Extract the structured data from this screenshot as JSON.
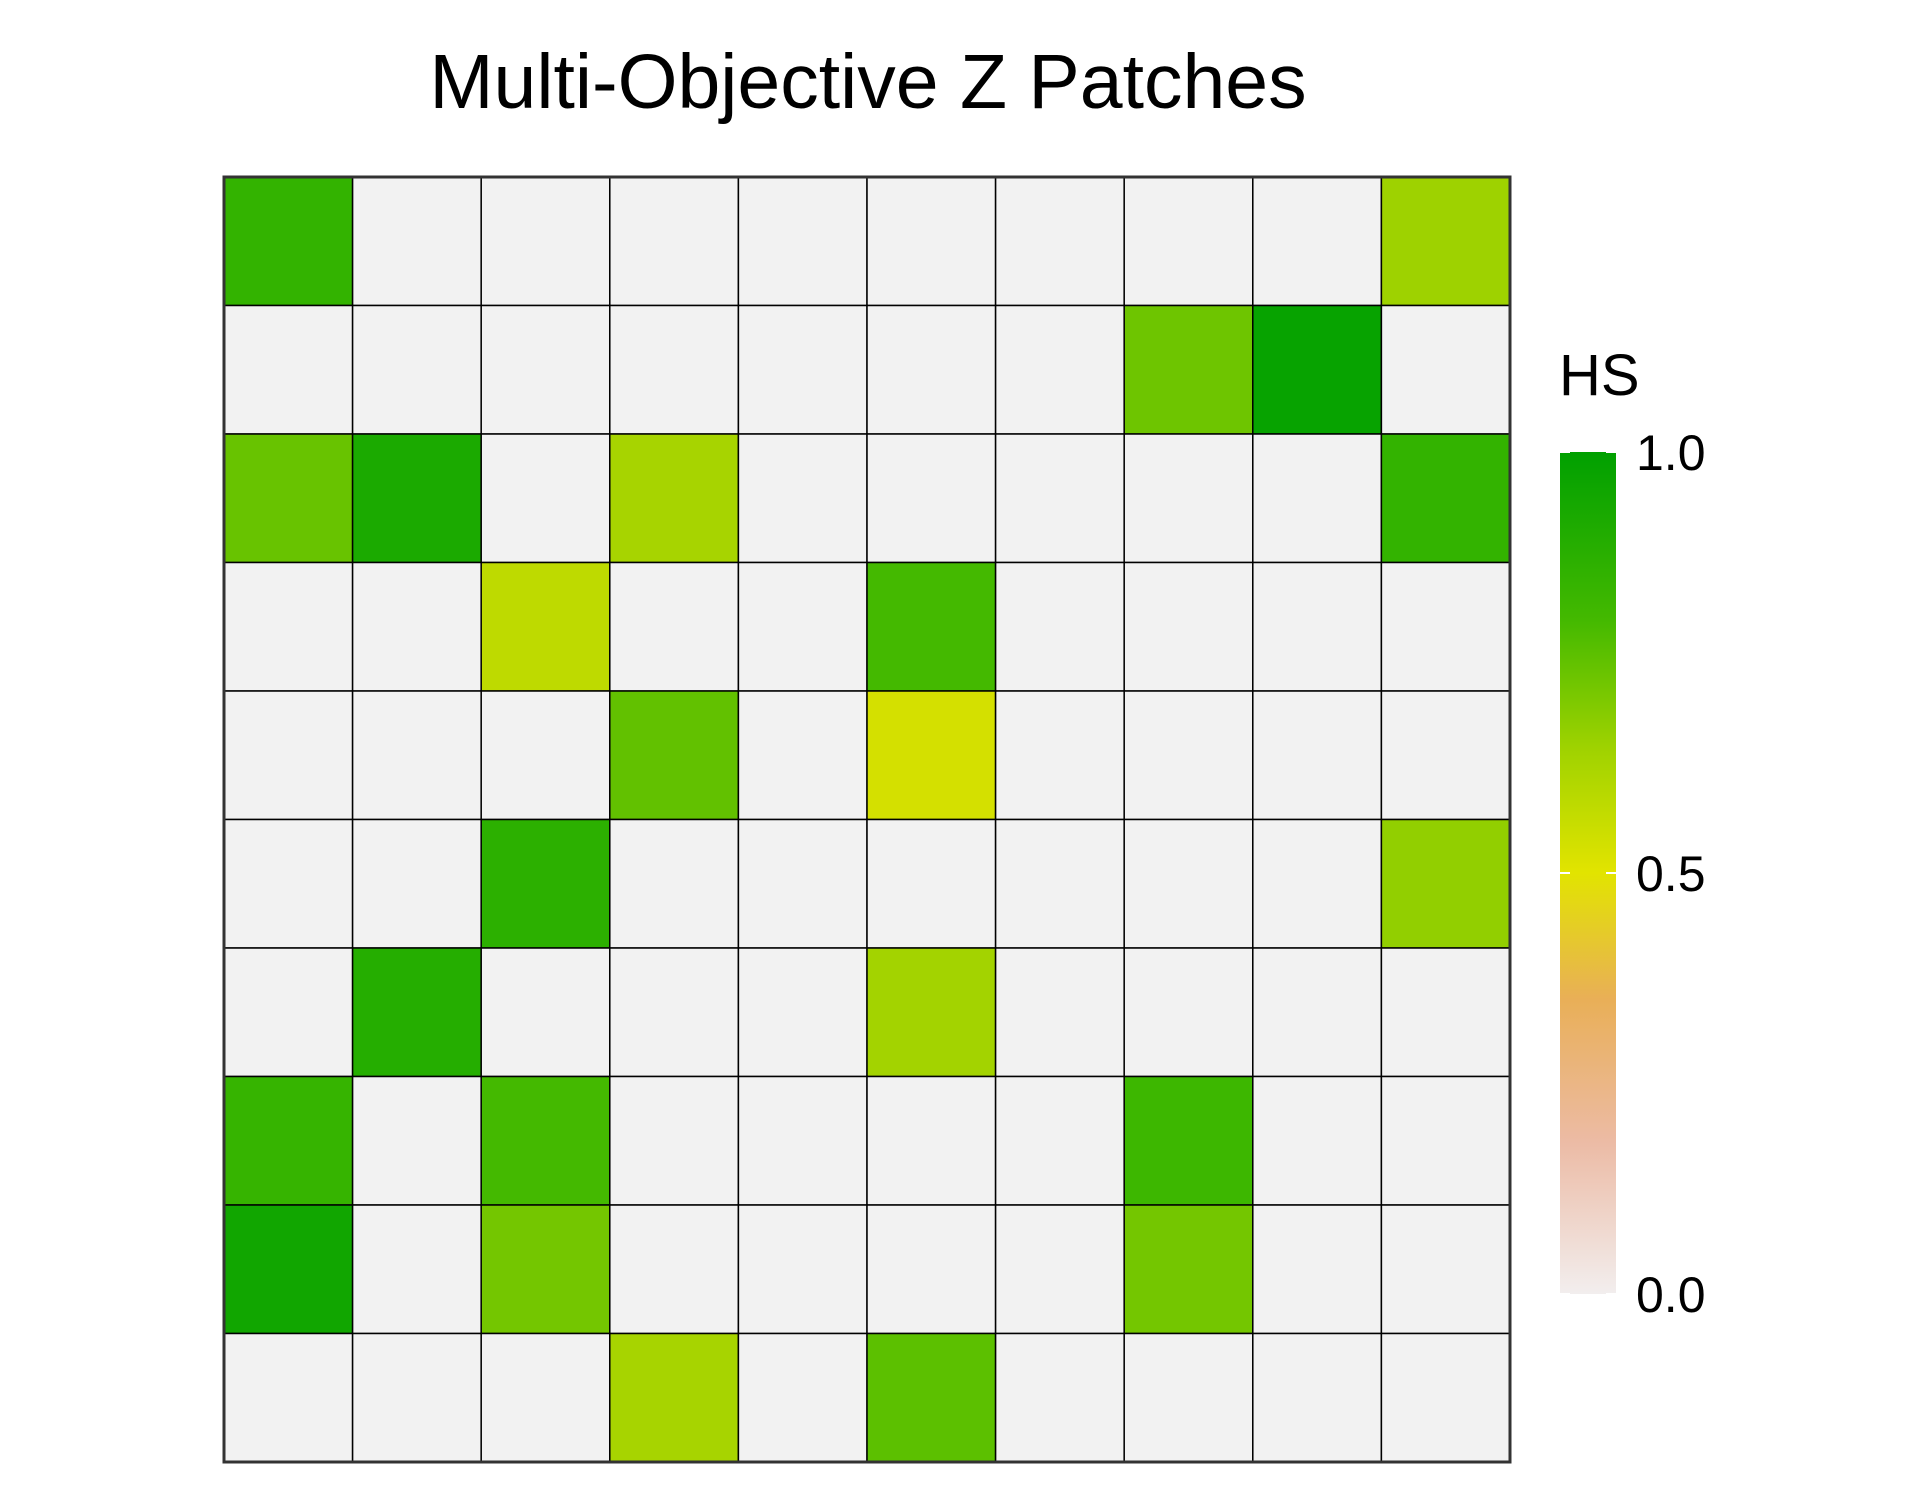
{
  "chart_data": {
    "type": "heatmap",
    "title": "Multi-Objective Z Patches",
    "rows": 10,
    "cols": 10,
    "empty_color": "#f2f2f2",
    "grid_line_color": "#000000",
    "frame_color": "#333333",
    "values": [
      [
        0.85,
        null,
        null,
        null,
        null,
        null,
        null,
        null,
        null,
        0.65
      ],
      [
        null,
        null,
        null,
        null,
        null,
        null,
        null,
        0.73,
        0.98,
        null
      ],
      [
        0.74,
        0.92,
        null,
        0.63,
        null,
        null,
        null,
        null,
        null,
        0.85
      ],
      [
        null,
        null,
        0.58,
        null,
        null,
        0.8,
        null,
        null,
        null,
        null
      ],
      [
        null,
        null,
        null,
        0.75,
        null,
        0.53,
        null,
        null,
        null,
        null
      ],
      [
        null,
        null,
        0.87,
        null,
        null,
        null,
        null,
        null,
        null,
        0.67
      ],
      [
        null,
        0.89,
        null,
        null,
        null,
        0.64,
        null,
        null,
        null,
        null
      ],
      [
        0.84,
        null,
        0.8,
        null,
        null,
        null,
        null,
        0.82,
        null,
        null
      ],
      [
        0.95,
        null,
        0.72,
        null,
        null,
        null,
        null,
        0.72,
        null,
        null
      ],
      [
        null,
        null,
        null,
        0.63,
        null,
        0.76,
        null,
        null,
        null,
        null
      ]
    ],
    "legend": {
      "title": "HS",
      "placement": "right",
      "ticks": [
        "0.0",
        "0.5",
        "1.0"
      ],
      "range": [
        0,
        1
      ],
      "colormap": [
        {
          "value": 0.0,
          "color": "#f2eeee"
        },
        {
          "value": 0.18,
          "color": "#ecbba5"
        },
        {
          "value": 0.35,
          "color": "#e9af57"
        },
        {
          "value": 0.5,
          "color": "#e2e400"
        },
        {
          "value": 0.65,
          "color": "#9ed200"
        },
        {
          "value": 0.8,
          "color": "#44b900"
        },
        {
          "value": 1.0,
          "color": "#00a000"
        }
      ]
    }
  }
}
